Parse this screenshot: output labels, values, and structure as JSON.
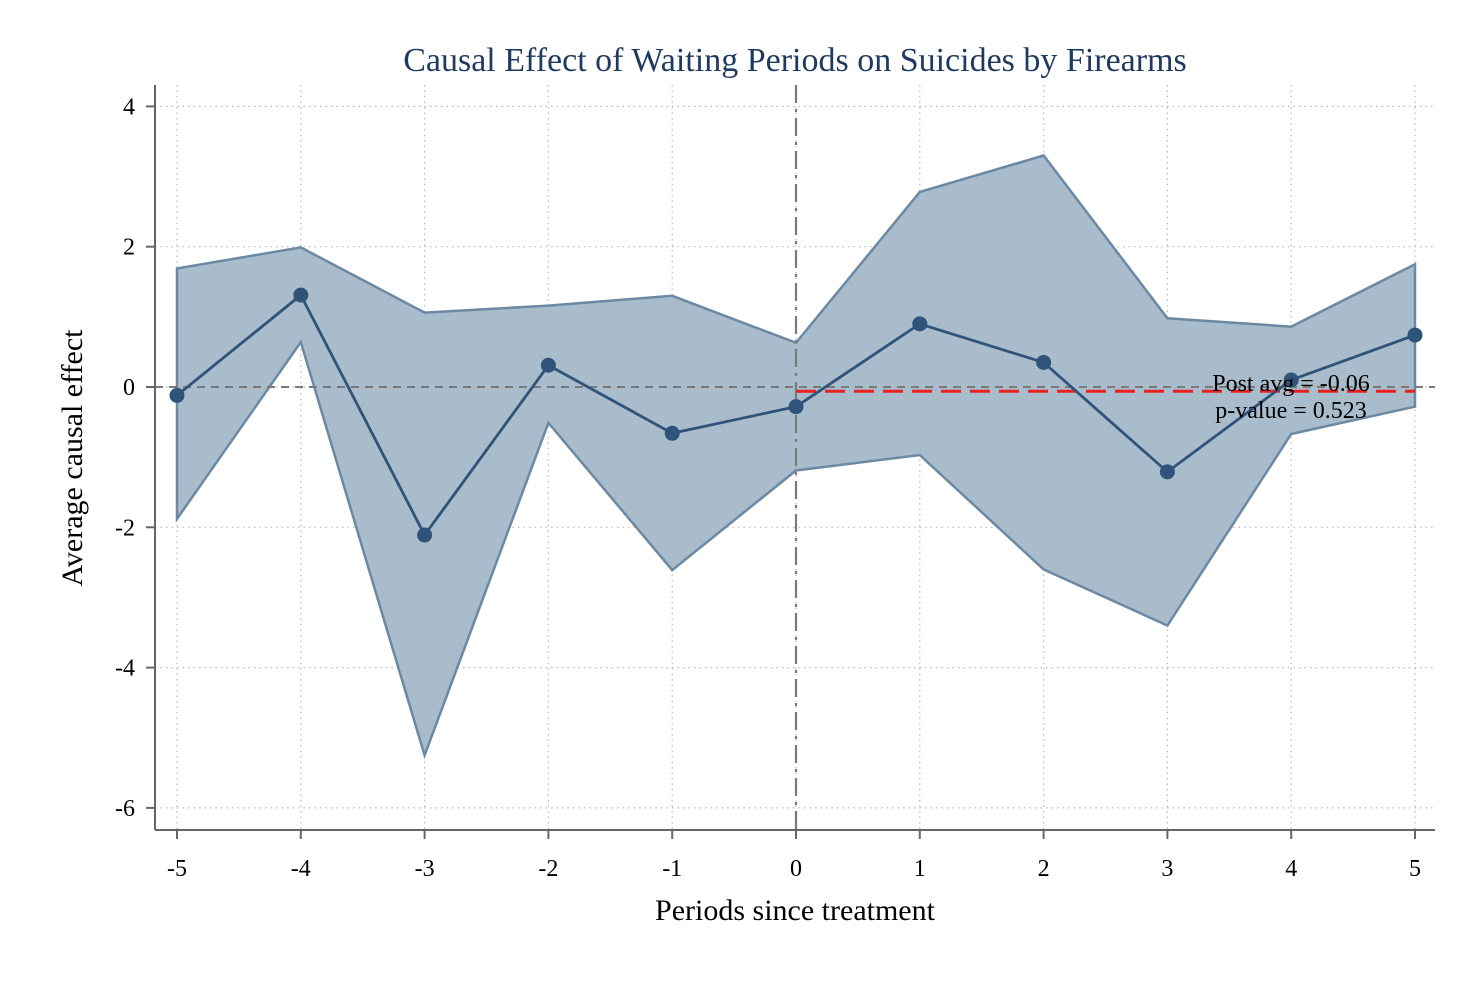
{
  "chart_data": {
    "type": "line",
    "title": "Causal Effect of Waiting Periods on Suicides by Firearms",
    "xlabel": "Periods since treatment",
    "ylabel": "Average causal effect",
    "x": [
      -5,
      -4,
      -3,
      -2,
      -1,
      0,
      1,
      2,
      3,
      4,
      5
    ],
    "series": [
      {
        "values": [
          -0.12,
          1.31,
          -2.11,
          0.31,
          -0.66,
          -0.28,
          0.9,
          0.35,
          -1.21,
          0.1,
          0.74
        ],
        "ci_upper": [
          1.69,
          1.99,
          1.06,
          1.16,
          1.3,
          0.63,
          2.78,
          3.3,
          0.98,
          0.86,
          1.75
        ],
        "ci_lower": [
          -1.88,
          0.64,
          -5.25,
          -0.51,
          -2.61,
          -1.19,
          -0.97,
          -2.6,
          -3.4,
          -0.67,
          -0.28
        ]
      }
    ],
    "xlim": [
      -5.2,
      5.2
    ],
    "ylim": [
      -6.3,
      4.4
    ],
    "xticks": [
      "-5",
      "-4",
      "-3",
      "-2",
      "-1",
      "0",
      "1",
      "2",
      "3",
      "4",
      "5"
    ],
    "yticks": [
      "4",
      "2",
      "0",
      "-2",
      "-4",
      "-6"
    ],
    "ytick_values": [
      4,
      2,
      0,
      -2,
      -4,
      -6
    ],
    "grid": true,
    "reference_lines": {
      "y_zero": 0,
      "x_treatment": 0
    },
    "post_avg_value": -0.06,
    "annotations": {
      "post_avg": "Post avg = -0.06",
      "p_value": "p-value = 0.523"
    },
    "colors": {
      "series": "#2f5379",
      "ci_fill": "#a9bccb",
      "ci_edge": "#6c89a4",
      "post_avg_line": "#e8201f",
      "reference": "#7a7a7a",
      "title": "#1f3a5f"
    }
  }
}
